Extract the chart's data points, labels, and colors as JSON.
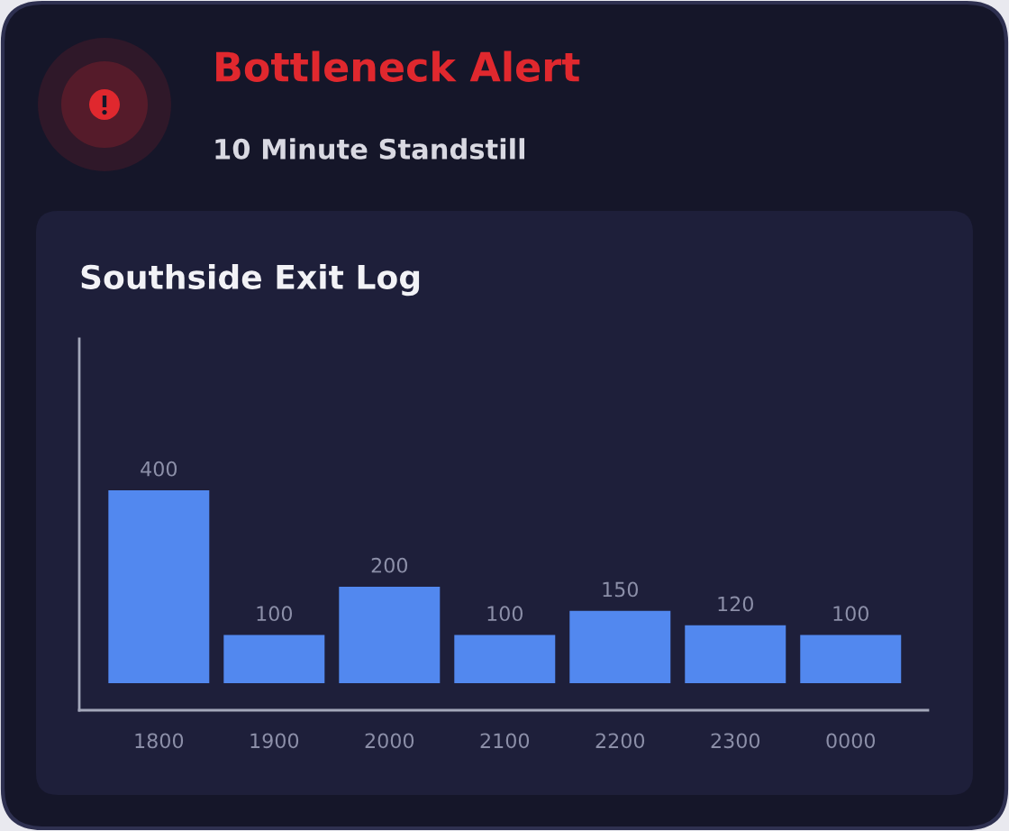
{
  "chart_data": [
    {
      "type": "other",
      "title": "Bottleneck Alert",
      "subtitle": "10 Minute Standstill"
    },
    {
      "type": "bar",
      "title": "Southside Exit Log",
      "categories": [
        "1800",
        "1900",
        "2000",
        "2100",
        "2200",
        "2300",
        "0000"
      ],
      "values": [
        400,
        100,
        200,
        100,
        150,
        120,
        100
      ],
      "color": "#5288ef",
      "data_labels": true,
      "tick_labels": "x",
      "grid": false
    }
  ]
}
